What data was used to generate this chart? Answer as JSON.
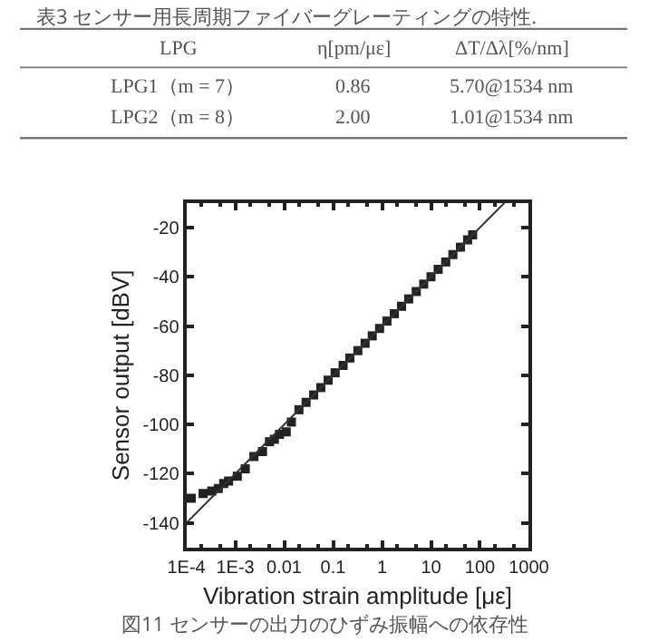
{
  "chart_data": {
    "type": "scatter",
    "xlabel": "Vibration strain amplitude [με]",
    "ylabel": "Sensor output [dBV]",
    "annotations": [
      "表3 センサー用長周期ファイバーグレーティングの特性.",
      "LPG",
      "η[pm/με]",
      "ΔT/Δλ[%/nm]",
      "LPG1（m = 7）",
      "0.86",
      "5.70@1534 nm",
      "LPG2（m = 8）",
      "2.00",
      "1.01@1534 nm",
      "図11 センサーの出力のひずみ振幅への依存性"
    ],
    "log": "x",
    "xlim": [
      0.0001,
      1000
    ],
    "ylim": [
      -150,
      -10
    ],
    "xticks": [
      {
        "value": 0.0001,
        "label": "1E-4"
      },
      {
        "value": 0.001,
        "label": "1E-3"
      },
      0.01,
      0.1,
      1,
      10,
      100,
      1000
    ],
    "yticks": [
      -140,
      -120,
      -100,
      -80,
      -60,
      -40,
      -20
    ],
    "series": [
      {
        "marker": "square",
        "color": "#222222",
        "x": [
          0.000126,
          0.00022,
          0.00033,
          0.00045,
          0.00058,
          0.00073,
          0.0011,
          0.0016,
          0.0024,
          0.0036,
          0.005,
          0.0063,
          0.008,
          0.011,
          0.014,
          0.02,
          0.028,
          0.04,
          0.056,
          0.079,
          0.11,
          0.16,
          0.22,
          0.32,
          0.45,
          0.63,
          0.89,
          1.26,
          1.78,
          2.5,
          3.5,
          5,
          7.1,
          10,
          14,
          20,
          28,
          40,
          56,
          71
        ],
        "values": [
          -130,
          -128,
          -127,
          -126,
          -124,
          -123,
          -121,
          -118,
          -113,
          -111,
          -107,
          -106,
          -104,
          -103,
          -99,
          -94,
          -91,
          -88,
          -85,
          -82,
          -79,
          -76,
          -73,
          -70,
          -67,
          -64,
          -61,
          -58,
          -55,
          -52,
          -49,
          -46,
          -43,
          -40,
          -37,
          -34,
          -31,
          -28,
          -25,
          -23
        ]
      },
      {
        "type": "line",
        "marker": "none",
        "line_style": "solid",
        "color": "#333333",
        "x": [
          0.0001,
          316
        ],
        "values": [
          -140,
          -10
        ]
      }
    ]
  }
}
